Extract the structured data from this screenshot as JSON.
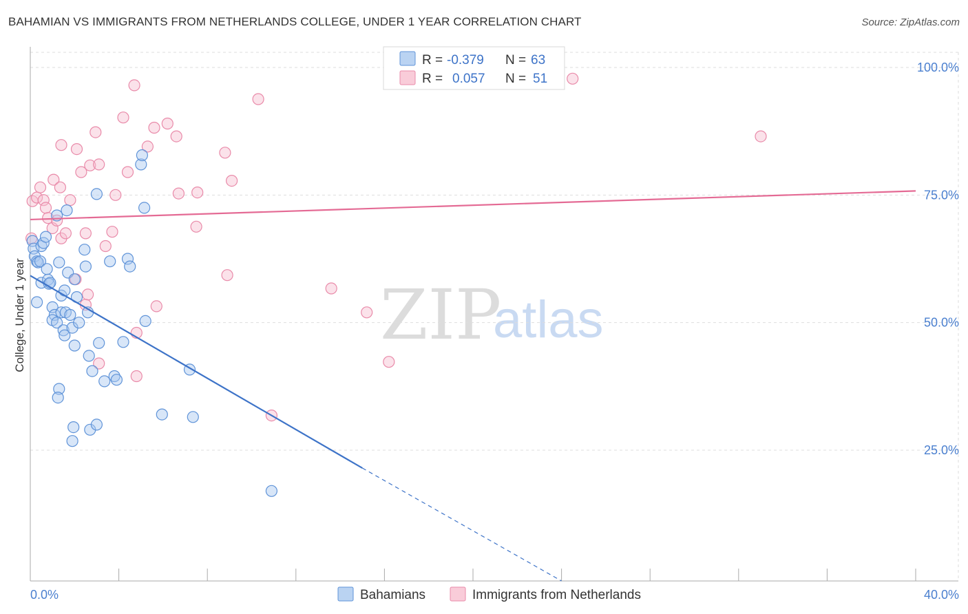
{
  "title": "BAHAMIAN VS IMMIGRANTS FROM NETHERLANDS COLLEGE, UNDER 1 YEAR CORRELATION CHART",
  "source": "Source: ZipAtlas.com",
  "watermark": {
    "zip": "ZIP",
    "atlas": "atlas"
  },
  "colors": {
    "blue_fill": "#a9c8ef",
    "blue_stroke": "#5f93d8",
    "blue_line": "#3d73c8",
    "pink_fill": "#f7bfd0",
    "pink_stroke": "#e98aa9",
    "pink_line": "#e46a94",
    "grid": "#dddddd",
    "tick_text": "#4a7fcf"
  },
  "stats": {
    "series1": {
      "r_label": "R =",
      "r_value": "-0.379",
      "n_label": "N =",
      "n_value": "63"
    },
    "series2": {
      "r_label": "R =",
      "r_value": "0.057",
      "n_label": "N =",
      "n_value": "51"
    }
  },
  "chart_data": {
    "type": "scatter",
    "title": "BAHAMIAN VS IMMIGRANTS FROM NETHERLANDS COLLEGE, UNDER 1 YEAR CORRELATION CHART",
    "xlabel": "",
    "ylabel": "College, Under 1 year",
    "xlim": [
      0,
      40
    ],
    "ylim": [
      2,
      105
    ],
    "x_tick_labels": [
      {
        "value": 0,
        "label": "0.0%"
      },
      {
        "value": 40,
        "label": "40.0%"
      }
    ],
    "y_tick_labels": [
      {
        "value": 100,
        "label": "100.0%"
      },
      {
        "value": 75,
        "label": "75.0%"
      },
      {
        "value": 50,
        "label": "50.0%"
      },
      {
        "value": 25,
        "label": "25.0%"
      }
    ],
    "legend_position": "bottom-center",
    "series": [
      {
        "name": "Bahamians",
        "color": "#5f93d8",
        "points": [
          [
            0.1,
            66.0
          ],
          [
            0.15,
            64.5
          ],
          [
            0.2,
            63.0
          ],
          [
            0.3,
            62.0
          ],
          [
            0.35,
            61.8
          ],
          [
            0.45,
            62.0
          ],
          [
            0.5,
            65.0
          ],
          [
            0.6,
            65.6
          ],
          [
            0.7,
            66.8
          ],
          [
            0.5,
            57.8
          ],
          [
            0.75,
            60.5
          ],
          [
            0.8,
            58.4
          ],
          [
            0.85,
            57.6
          ],
          [
            0.9,
            57.8
          ],
          [
            1.0,
            53.0
          ],
          [
            1.1,
            51.5
          ],
          [
            1.0,
            50.5
          ],
          [
            1.2,
            50.0
          ],
          [
            1.4,
            52.0
          ],
          [
            1.5,
            48.5
          ],
          [
            1.55,
            47.5
          ],
          [
            1.6,
            52.0
          ],
          [
            1.8,
            51.5
          ],
          [
            1.9,
            49.0
          ],
          [
            2.2,
            50.0
          ],
          [
            1.4,
            55.3
          ],
          [
            1.3,
            61.8
          ],
          [
            1.7,
            59.8
          ],
          [
            2.0,
            58.5
          ],
          [
            2.1,
            55.0
          ],
          [
            1.2,
            71.0
          ],
          [
            1.65,
            72.0
          ],
          [
            2.45,
            64.3
          ],
          [
            2.5,
            61.0
          ],
          [
            2.6,
            52.0
          ],
          [
            2.65,
            43.5
          ],
          [
            2.8,
            40.5
          ],
          [
            3.1,
            46.0
          ],
          [
            3.35,
            38.5
          ],
          [
            3.6,
            62.0
          ],
          [
            3.8,
            39.5
          ],
          [
            3.9,
            38.8
          ],
          [
            4.2,
            46.2
          ],
          [
            4.4,
            62.5
          ],
          [
            4.5,
            61.0
          ],
          [
            5.0,
            81.0
          ],
          [
            5.05,
            82.8
          ],
          [
            5.15,
            72.5
          ],
          [
            5.2,
            50.3
          ],
          [
            3.0,
            75.2
          ],
          [
            2.0,
            45.5
          ],
          [
            1.3,
            37.0
          ],
          [
            1.25,
            35.3
          ],
          [
            1.95,
            29.5
          ],
          [
            2.7,
            29.0
          ],
          [
            3.0,
            30.0
          ],
          [
            1.9,
            26.8
          ],
          [
            5.95,
            32.0
          ],
          [
            7.35,
            31.5
          ],
          [
            7.2,
            40.8
          ],
          [
            10.9,
            17.0
          ],
          [
            0.3,
            54.0
          ],
          [
            1.55,
            56.3
          ]
        ]
      },
      {
        "name": "Immigrants from Netherlands",
        "color": "#e98aa9",
        "points": [
          [
            0.05,
            66.5
          ],
          [
            0.1,
            73.8
          ],
          [
            0.3,
            74.5
          ],
          [
            0.45,
            76.5
          ],
          [
            0.6,
            74.0
          ],
          [
            0.7,
            72.5
          ],
          [
            0.8,
            70.5
          ],
          [
            1.0,
            68.5
          ],
          [
            1.05,
            78.0
          ],
          [
            1.2,
            70.0
          ],
          [
            1.35,
            76.5
          ],
          [
            1.4,
            66.5
          ],
          [
            1.6,
            67.5
          ],
          [
            1.8,
            74.0
          ],
          [
            1.4,
            84.8
          ],
          [
            2.1,
            84.0
          ],
          [
            2.3,
            79.5
          ],
          [
            2.5,
            67.5
          ],
          [
            2.6,
            55.5
          ],
          [
            2.5,
            53.5
          ],
          [
            2.05,
            58.5
          ],
          [
            2.7,
            80.8
          ],
          [
            2.95,
            87.3
          ],
          [
            3.1,
            81.0
          ],
          [
            3.4,
            65.0
          ],
          [
            3.7,
            67.8
          ],
          [
            3.85,
            75.0
          ],
          [
            4.2,
            90.2
          ],
          [
            4.4,
            79.5
          ],
          [
            4.7,
            96.5
          ],
          [
            5.3,
            84.5
          ],
          [
            5.6,
            88.2
          ],
          [
            5.7,
            53.2
          ],
          [
            6.2,
            89.0
          ],
          [
            6.6,
            86.5
          ],
          [
            6.7,
            75.3
          ],
          [
            7.55,
            75.5
          ],
          [
            7.5,
            68.8
          ],
          [
            8.8,
            83.3
          ],
          [
            9.1,
            77.8
          ],
          [
            8.9,
            59.3
          ],
          [
            10.3,
            93.8
          ],
          [
            10.9,
            31.8
          ],
          [
            13.6,
            56.7
          ],
          [
            15.2,
            52.0
          ],
          [
            16.2,
            42.3
          ],
          [
            3.1,
            42.0
          ],
          [
            4.8,
            48.0
          ],
          [
            4.8,
            39.5
          ],
          [
            24.5,
            97.8
          ],
          [
            33.0,
            86.5
          ]
        ]
      }
    ],
    "trend_lines": [
      {
        "series": "Bahamians",
        "x": [
          0,
          15
        ],
        "y": [
          59.2,
          21.5
        ],
        "dashed_extension_to": [
          24,
          -1.3
        ]
      },
      {
        "series": "Immigrants from Netherlands",
        "x": [
          0,
          40
        ],
        "y": [
          70.2,
          75.8
        ]
      }
    ],
    "legend": [
      {
        "label": "Bahamians"
      },
      {
        "label": "Immigrants from Netherlands"
      }
    ]
  }
}
